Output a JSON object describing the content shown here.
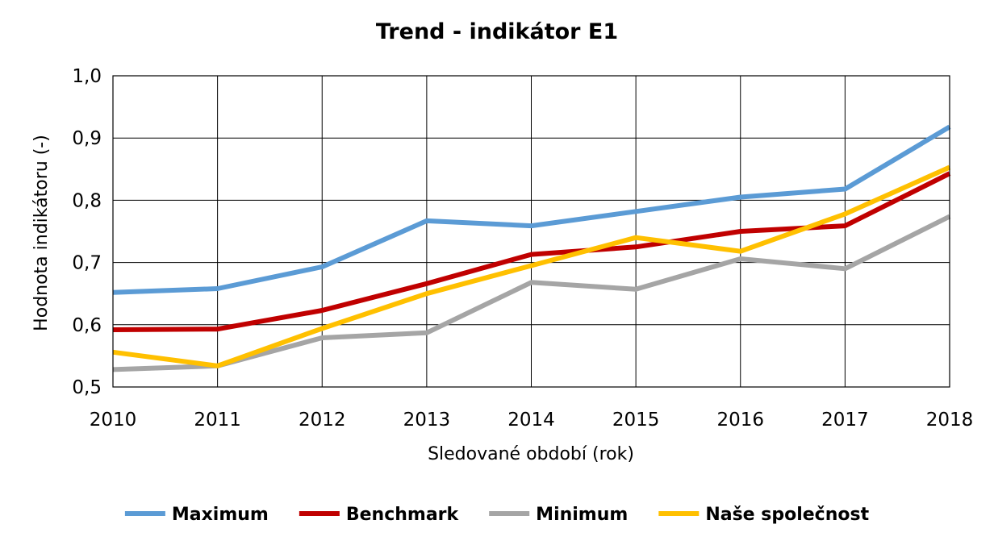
{
  "chart_data": {
    "type": "line",
    "title": "Trend - indikátor E1",
    "xlabel": "Sledované období (rok)",
    "ylabel": "Hodnota indikátoru (-)",
    "categories": [
      "2010",
      "2011",
      "2012",
      "2013",
      "2014",
      "2015",
      "2016",
      "2017",
      "2018"
    ],
    "ylim": [
      0.5,
      1.0
    ],
    "yticks": [
      "0,5",
      "0,6",
      "0,7",
      "0,8",
      "0,9",
      "1,0"
    ],
    "grid": true,
    "legend_position": "bottom",
    "series": [
      {
        "name": "Maximum",
        "color": "#5B9BD5",
        "values": [
          0.652,
          0.658,
          0.693,
          0.767,
          0.759,
          0.782,
          0.805,
          0.818,
          0.918
        ]
      },
      {
        "name": "Benchmark",
        "color": "#C00000",
        "values": [
          0.592,
          0.593,
          0.623,
          0.666,
          0.713,
          0.725,
          0.75,
          0.759,
          0.843
        ]
      },
      {
        "name": "Minimum",
        "color": "#A5A5A5",
        "values": [
          0.528,
          0.534,
          0.579,
          0.587,
          0.668,
          0.657,
          0.706,
          0.69,
          0.774
        ]
      },
      {
        "name": "Naše společnost",
        "color": "#FFC000",
        "values": [
          0.556,
          0.534,
          0.594,
          0.65,
          0.695,
          0.74,
          0.718,
          0.778,
          0.853
        ]
      }
    ]
  }
}
